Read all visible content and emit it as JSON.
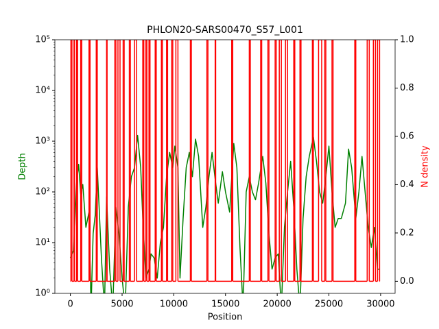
{
  "chart_data": {
    "type": "line",
    "title": "PHLON20-SARS00470_S57_L001",
    "x_label": "Position",
    "y_label": "Depth",
    "y2_label": "N density",
    "xlim": [
      -1500,
      31400
    ],
    "xticks": [
      0,
      5000,
      10000,
      15000,
      20000,
      25000,
      30000
    ],
    "ylim": [
      1,
      100000
    ],
    "yscale": "log",
    "yticks": [
      {
        "value": 1,
        "label": "10⁰"
      },
      {
        "value": 10,
        "label": "10¹"
      },
      {
        "value": 100,
        "label": "10²"
      },
      {
        "value": 1000,
        "label": "10³"
      },
      {
        "value": 10000,
        "label": "10⁴"
      },
      {
        "value": 100000,
        "label": "10⁵"
      }
    ],
    "y2lim": [
      -0.05,
      1.0
    ],
    "y2ticks": [
      {
        "value": 0,
        "label": "0.0"
      },
      {
        "value": 0.2,
        "label": "0.2"
      },
      {
        "value": 0.4,
        "label": "0.4"
      },
      {
        "value": 0.6,
        "label": "0.6"
      },
      {
        "value": 0.8,
        "label": "0.8"
      },
      {
        "value": 1,
        "label": "1.0"
      }
    ],
    "series": [
      {
        "name": "Depth",
        "color": "#008000",
        "step": false,
        "x": [
          0,
          300,
          600,
          800,
          1000,
          1200,
          1500,
          1800,
          2000,
          2200,
          2400,
          2600,
          2800,
          3000,
          3300,
          3500,
          3800,
          4100,
          4400,
          4700,
          5000,
          5300,
          5600,
          5900,
          6200,
          6500,
          6800,
          7000,
          7300,
          7600,
          7800,
          8100,
          8400,
          8700,
          9000,
          9300,
          9600,
          9900,
          10100,
          10400,
          10600,
          10900,
          11200,
          11500,
          11800,
          12100,
          12400,
          12800,
          13100,
          13400,
          13700,
          14000,
          14300,
          14700,
          15000,
          15400,
          15800,
          16100,
          16400,
          16700,
          17000,
          17300,
          17600,
          17900,
          18200,
          18600,
          18900,
          19200,
          19500,
          19800,
          20100,
          20400,
          20700,
          21000,
          21300,
          21600,
          21900,
          22200,
          22500,
          22800,
          23100,
          23500,
          23800,
          24100,
          24400,
          24700,
          25000,
          25300,
          25600,
          25900,
          26200,
          26600,
          26900,
          27200,
          27600,
          27900,
          28200,
          28500,
          28800,
          29100,
          29400,
          29700,
          29900
        ],
        "values": [
          5,
          7,
          150,
          350,
          90,
          140,
          20,
          40,
          0.5,
          15,
          35,
          300,
          40,
          5,
          0.5,
          80,
          3,
          0.5,
          50,
          15,
          2,
          0.5,
          50,
          200,
          300,
          1300,
          300,
          30,
          2,
          3,
          6,
          5,
          2,
          10,
          20,
          200,
          600,
          300,
          800,
          300,
          2,
          30,
          300,
          600,
          200,
          1100,
          500,
          20,
          50,
          200,
          600,
          180,
          60,
          250,
          100,
          40,
          900,
          300,
          8,
          0.5,
          100,
          200,
          100,
          70,
          150,
          500,
          150,
          15,
          3,
          5,
          6,
          0.5,
          20,
          100,
          400,
          50,
          3,
          0.5,
          30,
          200,
          500,
          1200,
          400,
          100,
          60,
          200,
          800,
          100,
          20,
          30,
          30,
          60,
          700,
          300,
          30,
          100,
          500,
          100,
          20,
          8,
          20,
          3,
          3
        ]
      },
      {
        "name": "N density",
        "color": "#ff0000",
        "axis": "y2",
        "step": true,
        "x": [
          0,
          50,
          150,
          350,
          400,
          600,
          700,
          1000,
          1100,
          1800,
          1900,
          2500,
          2600,
          3500,
          3550,
          4300,
          4400,
          4600,
          4800,
          5100,
          5200,
          5700,
          5800,
          6200,
          6400,
          7000,
          7100,
          7300,
          7400,
          7600,
          7700,
          8200,
          8300,
          8800,
          8900,
          9300,
          9400,
          9800,
          9900,
          10200,
          10400,
          11600,
          11700,
          13200,
          13300,
          14000,
          14050,
          15600,
          15700,
          17300,
          17400,
          18400,
          18500,
          19100,
          19200,
          19800,
          19900,
          20200,
          20400,
          20800,
          21000,
          21600,
          21700,
          22200,
          22300,
          23400,
          23500,
          24000,
          24300,
          24600,
          24700,
          25300,
          25400,
          27500,
          27600,
          28700,
          28900,
          29300,
          29500,
          29700,
          29900
        ],
        "values": [
          0,
          1,
          0,
          1,
          0,
          1,
          0,
          1,
          0,
          1,
          0,
          1,
          0,
          1,
          0,
          1,
          0,
          1,
          0,
          1,
          0,
          1,
          0,
          1,
          0,
          1,
          0,
          1,
          0,
          1,
          0,
          1,
          0,
          1,
          0,
          1,
          0,
          1,
          0,
          1,
          0,
          1,
          0,
          1,
          0,
          1,
          0,
          1,
          0,
          1,
          0,
          1,
          0,
          1,
          0,
          1,
          0,
          1,
          0,
          1,
          0,
          1,
          0,
          1,
          0,
          1,
          0,
          1,
          0,
          1,
          0,
          1,
          0,
          1,
          0,
          1,
          0,
          1,
          0,
          1,
          0
        ]
      }
    ]
  }
}
